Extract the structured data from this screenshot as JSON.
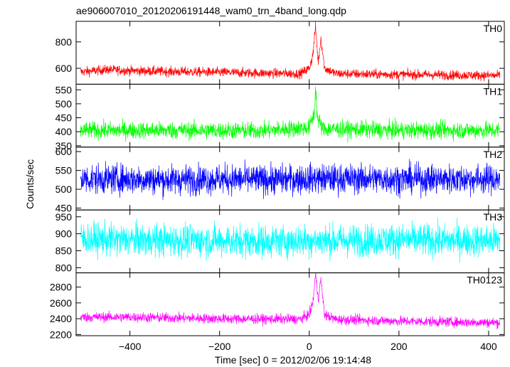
{
  "chart_data": {
    "type": "line",
    "title": "ae906007010_20120206191448_wam0_trn_4band_long.qdp",
    "xlabel": "Time [sec] 0 = 2012/02/06 19:14:48",
    "ylabel": "Counts/sec",
    "xlim": [
      -520,
      435
    ],
    "xticks": [
      -400,
      -200,
      0,
      200,
      400
    ],
    "xtick_labels": [
      "−400",
      "−200",
      "0",
      "200",
      "400"
    ],
    "grid": false,
    "series": [
      {
        "name": "TH0",
        "color": "#ff0000",
        "ylim": [
          480,
          955
        ],
        "yticks": [
          600,
          800
        ],
        "baseline": 565,
        "noise": 26,
        "points": [
          [
            -510,
            572
          ],
          [
            -450,
            590
          ],
          [
            -400,
            582
          ],
          [
            -300,
            575
          ],
          [
            -200,
            570
          ],
          [
            -100,
            563
          ],
          [
            -20,
            560
          ],
          [
            0,
            600
          ],
          [
            8,
            700
          ],
          [
            14,
            920
          ],
          [
            20,
            640
          ],
          [
            26,
            830
          ],
          [
            34,
            600
          ],
          [
            60,
            560
          ],
          [
            150,
            555
          ],
          [
            250,
            552
          ],
          [
            350,
            548
          ],
          [
            425,
            545
          ]
        ]
      },
      {
        "name": "TH1",
        "color": "#00ff00",
        "ylim": [
          345,
          570
        ],
        "yticks": [
          350,
          400,
          450,
          500,
          550
        ],
        "baseline": 405,
        "noise": 22,
        "points": [
          [
            -510,
            405
          ],
          [
            -300,
            405
          ],
          [
            -100,
            404
          ],
          [
            0,
            415
          ],
          [
            12,
            470
          ],
          [
            14,
            565
          ],
          [
            18,
            450
          ],
          [
            30,
            410
          ],
          [
            200,
            405
          ],
          [
            425,
            405
          ]
        ]
      },
      {
        "name": "TH2",
        "color": "#0000ff",
        "ylim": [
          445,
          612
        ],
        "yticks": [
          450,
          500,
          550,
          600
        ],
        "baseline": 527,
        "noise": 28,
        "points": [
          [
            -510,
            527
          ],
          [
            -400,
            527
          ],
          [
            -300,
            525
          ],
          [
            -200,
            527
          ],
          [
            -100,
            525
          ],
          [
            0,
            528
          ],
          [
            100,
            528
          ],
          [
            200,
            527
          ],
          [
            300,
            527
          ],
          [
            425,
            527
          ]
        ]
      },
      {
        "name": "TH3",
        "color": "#00ffff",
        "ylim": [
          785,
          970
        ],
        "yticks": [
          800,
          850,
          900,
          950
        ],
        "baseline": 880,
        "noise": 34,
        "points": [
          [
            -510,
            885
          ],
          [
            -400,
            882
          ],
          [
            -300,
            880
          ],
          [
            -200,
            880
          ],
          [
            -100,
            878
          ],
          [
            0,
            880
          ],
          [
            100,
            880
          ],
          [
            200,
            882
          ],
          [
            300,
            880
          ],
          [
            425,
            880
          ]
        ]
      },
      {
        "name": "TH0123",
        "color": "#ff00ff",
        "ylim": [
          2185,
          2980
        ],
        "yticks": [
          2200,
          2400,
          2600,
          2800
        ],
        "baseline": 2410,
        "noise": 45,
        "points": [
          [
            -510,
            2420
          ],
          [
            -400,
            2420
          ],
          [
            -300,
            2410
          ],
          [
            -200,
            2400
          ],
          [
            -100,
            2395
          ],
          [
            -20,
            2395
          ],
          [
            0,
            2450
          ],
          [
            8,
            2600
          ],
          [
            14,
            2960
          ],
          [
            20,
            2650
          ],
          [
            26,
            2900
          ],
          [
            34,
            2450
          ],
          [
            60,
            2390
          ],
          [
            200,
            2370
          ],
          [
            300,
            2360
          ],
          [
            425,
            2350
          ]
        ]
      }
    ]
  }
}
